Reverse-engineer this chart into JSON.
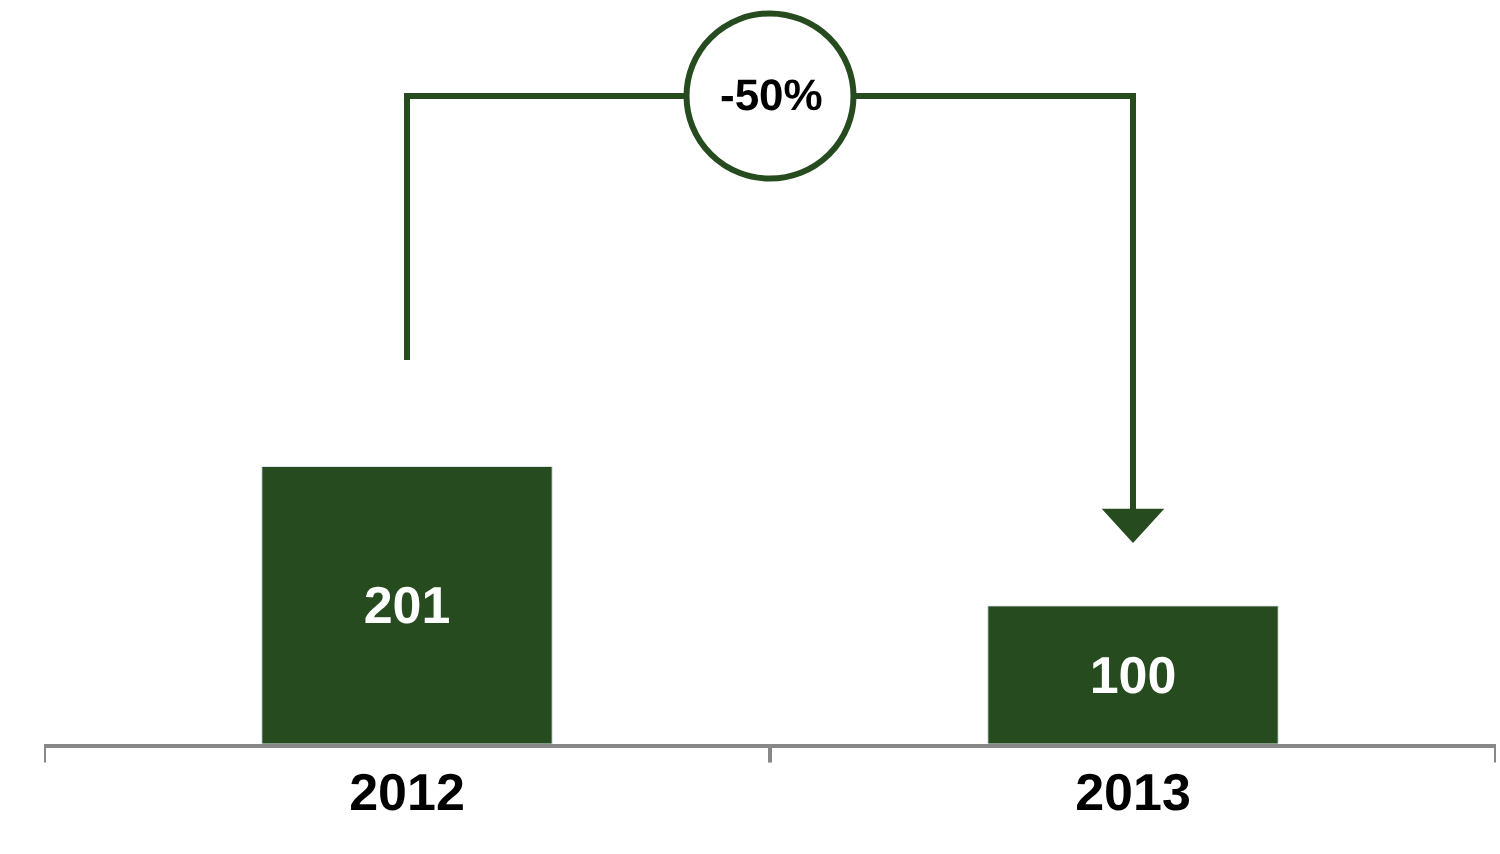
{
  "chart_data": {
    "type": "bar",
    "categories": [
      "2012",
      "2013"
    ],
    "series": [
      {
        "color": "#264b1e",
        "values": [
          201,
          100
        ]
      }
    ],
    "data_labels": true,
    "annotations": [
      "-50%"
    ]
  }
}
